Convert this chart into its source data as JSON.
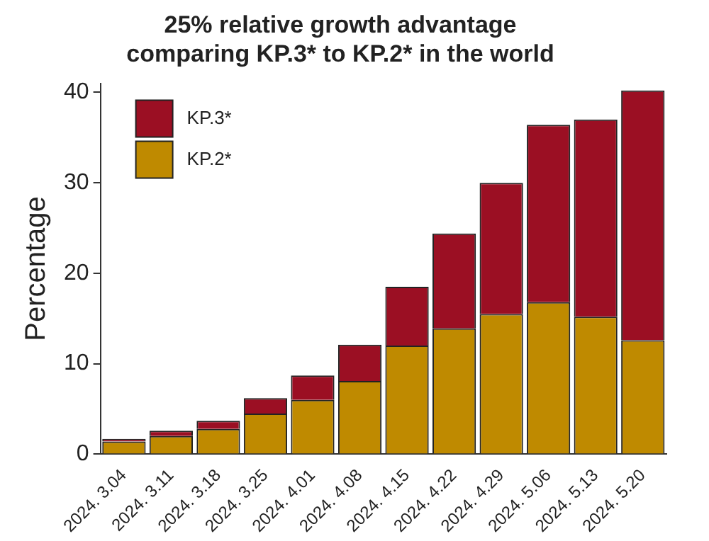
{
  "chart_data": {
    "type": "bar",
    "title": "25% relative growth advantage\ncomparing KP.3* to KP.2* in the world",
    "ylabel": "Percentage",
    "categories": [
      "2024. 3.04",
      "2024. 3.11",
      "2024. 3.18",
      "2024. 3.25",
      "2024. 4.01",
      "2024. 4.08",
      "2024. 4.15",
      "2024. 4.22",
      "2024. 4.29",
      "2024. 5.06",
      "2024. 5.13",
      "2024. 5.20"
    ],
    "stacked": true,
    "series": [
      {
        "name": "KP.2*",
        "color": "#bf8a00",
        "values": [
          1.4,
          2.0,
          2.8,
          4.5,
          6.0,
          8.1,
          12.0,
          13.9,
          15.5,
          16.8,
          15.2,
          12.6
        ]
      },
      {
        "name": "KP.3*",
        "color": "#9b0f23",
        "values": [
          0.3,
          0.6,
          0.9,
          1.7,
          2.7,
          4.0,
          6.5,
          10.5,
          14.5,
          19.6,
          21.8,
          27.6
        ]
      }
    ],
    "ylim": [
      0,
      41
    ],
    "yticks": [
      0,
      10,
      20,
      30,
      40
    ],
    "grid": false,
    "legend": "top left"
  }
}
